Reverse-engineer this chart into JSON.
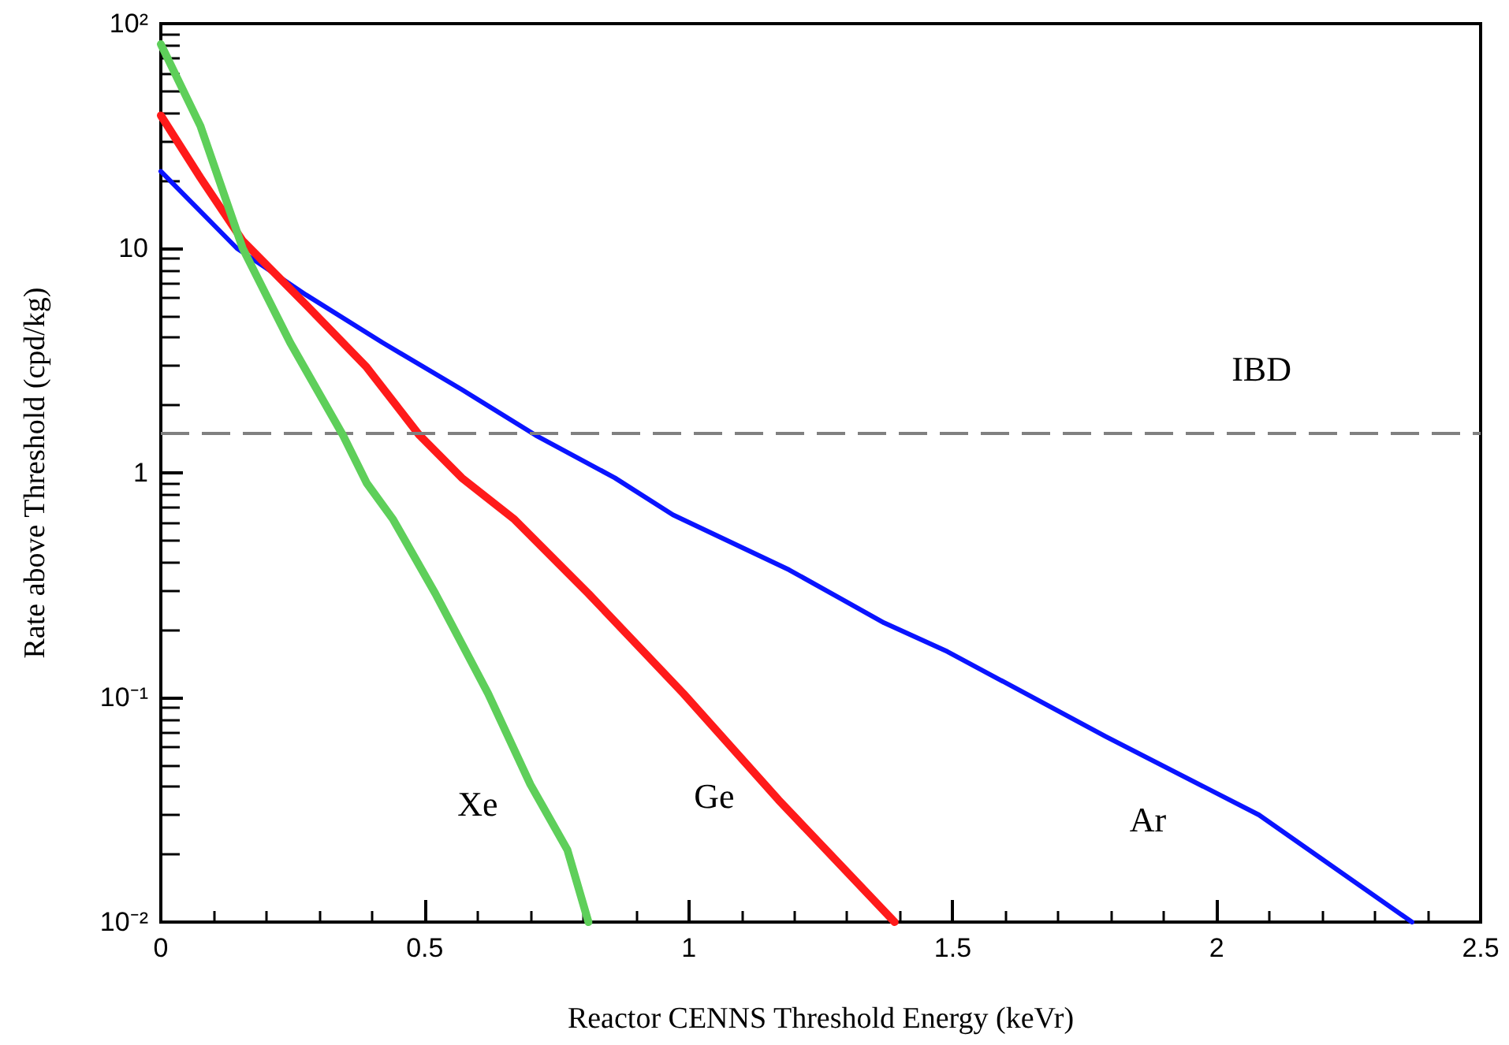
{
  "chart_data": {
    "type": "line",
    "xlabel": "Reactor CENNS Threshold Energy (keVr)",
    "ylabel": "Rate above Threshold (cpd/kg)",
    "log": "y",
    "xlim": [
      0,
      2.5
    ],
    "xticks": [
      0,
      0.5,
      1,
      1.5,
      2,
      2.5
    ],
    "ylim": [
      0.01,
      100
    ],
    "yticks": [
      {
        "value": 0.01,
        "label": "10⁻²"
      },
      {
        "value": 0.1,
        "label": "10⁻¹"
      },
      1,
      10,
      {
        "value": 100,
        "label": "10²"
      }
    ],
    "grid": false,
    "marker": "none",
    "line_style": "solid",
    "series": [
      {
        "color": "#0a14ff",
        "x": [
          0,
          0.144,
          0.275,
          0.42,
          0.57,
          0.71,
          0.86,
          0.97,
          1.19,
          1.37,
          1.49,
          1.79,
          2.08,
          2.37
        ],
        "values": [
          22,
          10,
          6.2,
          3.8,
          2.35,
          1.47,
          0.95,
          0.65,
          0.37,
          0.215,
          0.16,
          0.067,
          0.03,
          0.01
        ]
      },
      {
        "color": "#ff1a1a",
        "x": [
          0,
          0.075,
          0.155,
          0.275,
          0.39,
          0.49,
          0.57,
          0.67,
          0.81,
          0.99,
          1.17,
          1.39
        ],
        "values": [
          39,
          20.6,
          10.8,
          5.6,
          2.95,
          1.47,
          0.95,
          0.62,
          0.29,
          0.104,
          0.035,
          0.01
        ]
      },
      {
        "color": "#5ecf5a",
        "x": [
          0,
          0.075,
          0.155,
          0.245,
          0.345,
          0.39,
          0.44,
          0.52,
          0.62,
          0.7,
          0.77,
          0.81
        ],
        "values": [
          81,
          35,
          10,
          3.8,
          1.47,
          0.9,
          0.62,
          0.29,
          0.104,
          0.041,
          0.021,
          0.01
        ]
      }
    ],
    "ref_lines": [
      {
        "axis": "y",
        "value": 1.5,
        "label": "IBD",
        "color": "#808080",
        "line_style": "dashed"
      }
    ],
    "annotations": [
      "Xe",
      "Ge",
      "Ar"
    ]
  }
}
